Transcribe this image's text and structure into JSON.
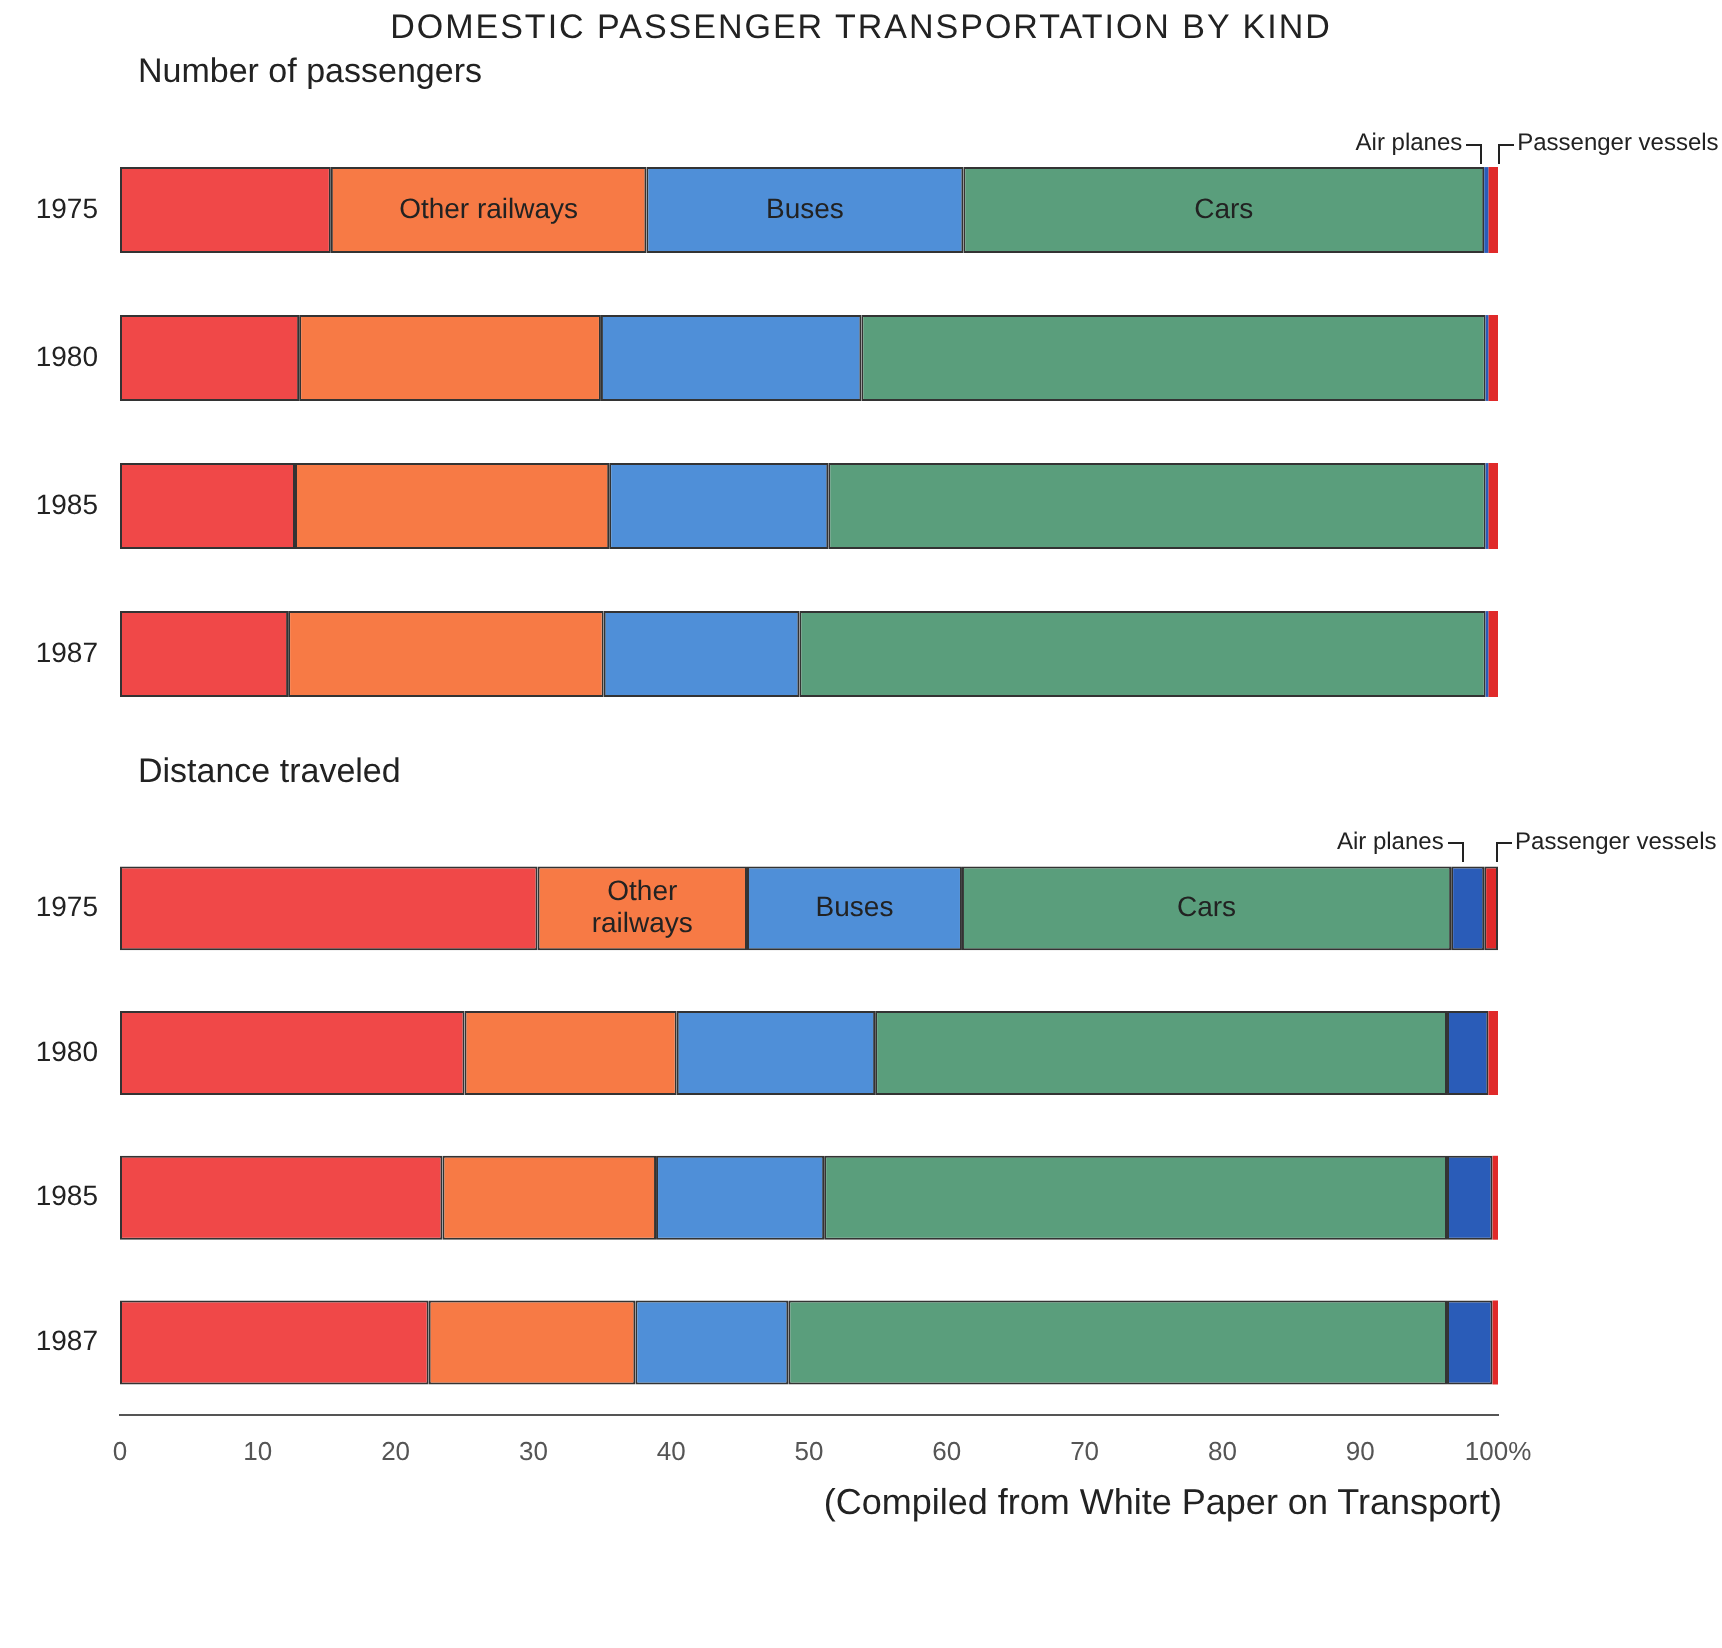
{
  "chart_data": [
    {
      "type": "bar",
      "orientation": "horizontal",
      "stacked": true,
      "title": "DOMESTIC PASSENGER TRANSPORTATION BY KIND",
      "subtitle": "Number of passengers",
      "categories": [
        "1975",
        "1980",
        "1985",
        "1987"
      ],
      "xlim": [
        0,
        100
      ],
      "tick_labels": "y",
      "grid": false,
      "series": [
        {
          "color": "#f04848",
          "values": [
            15.3,
            13.0,
            12.7,
            12.2
          ]
        },
        {
          "name": "Other railways",
          "color": "#f77a45",
          "values": [
            22.9,
            21.9,
            22.8,
            22.9
          ]
        },
        {
          "name": "Buses",
          "color": "#4f8fd8",
          "values": [
            23.0,
            18.9,
            15.9,
            14.2
          ]
        },
        {
          "name": "Cars",
          "color": "#5a9e7c",
          "values": [
            37.8,
            45.3,
            47.7,
            49.8
          ]
        },
        {
          "name": "Air planes",
          "color": "#2a5cb8",
          "values": [
            0.3,
            0.2,
            0.2,
            0.2
          ]
        },
        {
          "name": "Passenger vessels",
          "color": "#e02a2a",
          "values": [
            0.7,
            0.7,
            0.7,
            0.7
          ]
        }
      ]
    },
    {
      "type": "bar",
      "orientation": "horizontal",
      "stacked": true,
      "subtitle": "Distance traveled",
      "categories": [
        "1975",
        "1980",
        "1985",
        "1987"
      ],
      "xlim": [
        0,
        100
      ],
      "xticks": [
        0,
        10,
        20,
        30,
        40,
        50,
        60,
        70,
        80,
        90,
        {
          "value": 100,
          "label": "100%"
        }
      ],
      "grid": false,
      "annotations": [
        "(Compiled from White Paper on Transport)"
      ],
      "series": [
        {
          "color": "#f04848",
          "values": [
            30.3,
            25.0,
            23.4,
            22.4
          ]
        },
        {
          "name": "Other railways",
          "color": "#f77a45",
          "values": [
            15.2,
            15.4,
            15.5,
            15.0
          ]
        },
        {
          "name": "Buses",
          "color": "#4f8fd8",
          "values": [
            15.6,
            14.4,
            12.2,
            11.1
          ]
        },
        {
          "name": "Cars",
          "color": "#5a9e7c",
          "values": [
            35.5,
            41.5,
            45.2,
            47.8
          ]
        },
        {
          "name": "Air planes",
          "color": "#2a5cb8",
          "values": [
            2.4,
            3.0,
            3.3,
            3.3
          ]
        },
        {
          "name": "Passenger vessels",
          "color": "#e02a2a",
          "values": [
            1.0,
            0.7,
            0.4,
            0.4
          ]
        }
      ]
    }
  ]
}
